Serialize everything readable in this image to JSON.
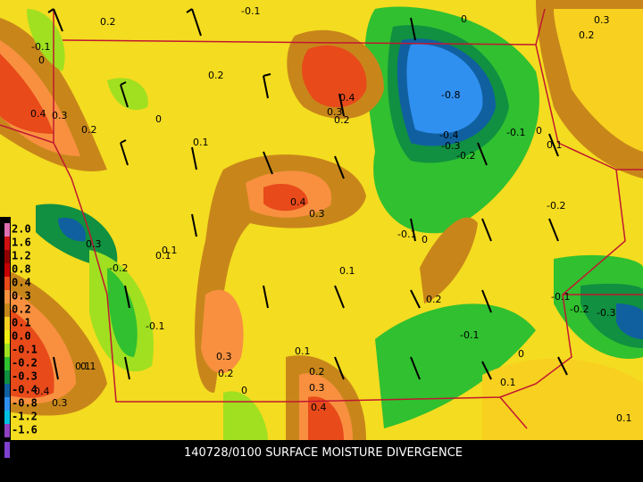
{
  "caption": "140728/0100 SURFACE MOISTURE DIVERGENCE",
  "legend": [
    {
      "label": "2.0",
      "color": "#e070b0"
    },
    {
      "label": "1.6",
      "color": "#d01010"
    },
    {
      "label": "1.2",
      "color": "#900000"
    },
    {
      "label": "0.8",
      "color": "#c80000"
    },
    {
      "label": "0.4",
      "color": "#e84a1a"
    },
    {
      "label": "0.3",
      "color": "#f89040"
    },
    {
      "label": "0.2",
      "color": "#c8861a"
    },
    {
      "label": "0.1",
      "color": "#f8d020"
    },
    {
      "label": "0.0",
      "color": "#f0f010"
    },
    {
      "label": "-0.1",
      "color": "#a0e020"
    },
    {
      "label": "-0.2",
      "color": "#30c030"
    },
    {
      "label": "-0.3",
      "color": "#109040"
    },
    {
      "label": "-0.4",
      "color": "#1060a0"
    },
    {
      "label": "-0.8",
      "color": "#3090f0"
    },
    {
      "label": "-1.2",
      "color": "#00c0e0"
    },
    {
      "label": "-1.6",
      "color": "#9040c0"
    }
  ],
  "contour_labels": [
    "0.2",
    "-0.1",
    "0",
    "0.4",
    "0.3",
    "0.2",
    "0.2",
    "0",
    "0.1",
    "0.4",
    "0.3",
    "0.2",
    "-0.8",
    "-0.4",
    "-0.3",
    "-0.2",
    "-0.1",
    "0",
    "0.1",
    "-0.2",
    "-0.1",
    "0",
    "0.3",
    "0.4",
    "0.3",
    "0.1",
    "0.1",
    "-0.2",
    "-0.1",
    "0.1",
    "0.3",
    "0.2",
    "0",
    "0.1",
    "0.2",
    "0.3",
    "0.4",
    "0.1",
    "0.2",
    "-0.1",
    "0",
    "0.1",
    "-0.1",
    "-0.2",
    "-0.3",
    "0.1",
    "0.4",
    "0.3",
    "0.1",
    "0.3",
    "0.2",
    "-0.1",
    "0"
  ]
}
